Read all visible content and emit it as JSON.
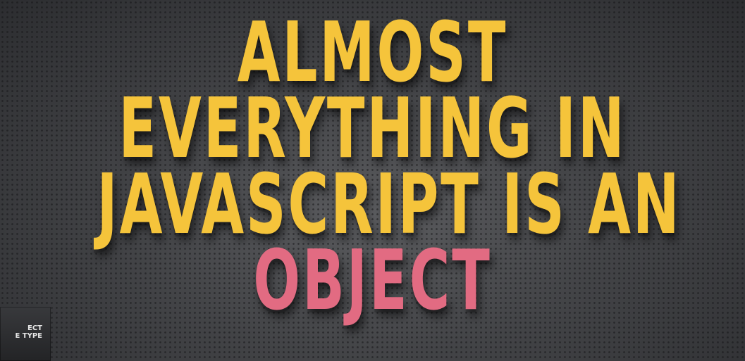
{
  "headline": {
    "lines": [
      "ALMOST",
      "EVERYTHING IN",
      "JAVASCRIPT IS AN",
      "OBJECT"
    ]
  },
  "thumbnail": {
    "lines": [
      "ECT",
      "E TYPE"
    ]
  },
  "colors": {
    "headline": "#f5c43b",
    "accent": "#e26b82",
    "background": "#3a3b3e"
  }
}
